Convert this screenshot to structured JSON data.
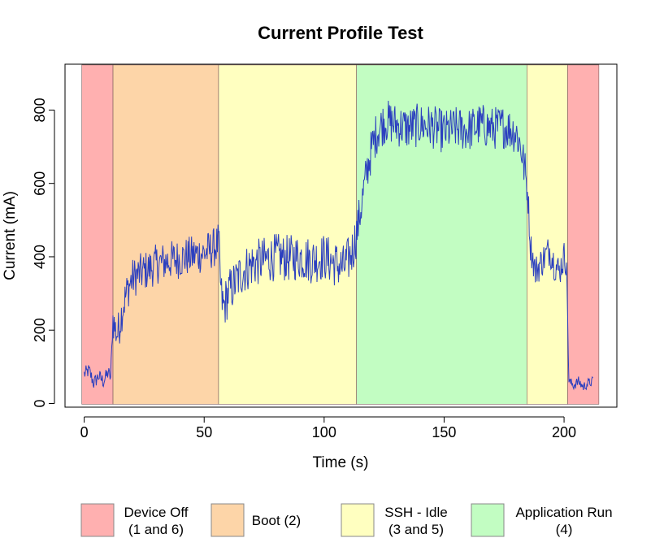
{
  "chart_data": {
    "type": "line",
    "title": "Current Profile Test",
    "xlabel": "Time (s)",
    "ylabel": "Current (mA)",
    "xlim": [
      -8,
      222
    ],
    "ylim": [
      -10,
      925
    ],
    "x_ticks": [
      0,
      50,
      100,
      150,
      200
    ],
    "y_ticks": [
      0,
      200,
      400,
      600,
      800
    ],
    "grid": false,
    "legend_position": "bottom",
    "line_color": "#2b3fbf",
    "phases": [
      {
        "label": "Device Off\n(1 and 6)",
        "start": -1,
        "end": 12,
        "color": "#ffb0b0"
      },
      {
        "label": "Boot (2)",
        "start": 12,
        "end": 56,
        "color": "#fdd5a8"
      },
      {
        "label": "SSH - Idle\n(3 and 5)",
        "start": 56,
        "end": 113.5,
        "color": "#ffffc0"
      },
      {
        "label": "Application Run\n(4)",
        "start": 113.5,
        "end": 184.5,
        "color": "#c2fdc2"
      },
      {
        "label": "SSH - Idle\n(3 and 5)",
        "start": 184.5,
        "end": 201.5,
        "color": "#ffffc0"
      },
      {
        "label": "Device Off\n(1 and 6)",
        "start": 201.5,
        "end": 214.5,
        "color": "#ffb0b0"
      }
    ],
    "legend": [
      {
        "line1": "Device Off",
        "line2": "(1 and 6)",
        "color": "#ffb0b0"
      },
      {
        "line1": "Boot (2)",
        "line2": "",
        "color": "#fdd5a8"
      },
      {
        "line1": "SSH - Idle",
        "line2": "(3 and 5)",
        "color": "#ffffc0"
      },
      {
        "line1": "Application Run",
        "line2": "(4)",
        "color": "#c2fdc2"
      }
    ],
    "series": [
      {
        "x": [
          0,
          2,
          4,
          6,
          8,
          10,
          11,
          12,
          13,
          14,
          16,
          18,
          20,
          22,
          25,
          28,
          30,
          33,
          36,
          40,
          43,
          46,
          50,
          53,
          55,
          56,
          57,
          58,
          60,
          63,
          66,
          70,
          75,
          80,
          85,
          90,
          95,
          100,
          105,
          108,
          110,
          112,
          113,
          114,
          116,
          118,
          120,
          122,
          124,
          126,
          130,
          135,
          140,
          145,
          150,
          155,
          160,
          165,
          170,
          175,
          180,
          182,
          184,
          185,
          186,
          188,
          190,
          192,
          194,
          196,
          198,
          200,
          201,
          202,
          204,
          206,
          208,
          210,
          212
        ],
        "y": [
          80,
          90,
          55,
          75,
          60,
          85,
          70,
          230,
          200,
          190,
          260,
          310,
          340,
          350,
          360,
          370,
          380,
          385,
          390,
          395,
          400,
          405,
          410,
          420,
          430,
          440,
          300,
          260,
          300,
          330,
          360,
          380,
          390,
          400,
          395,
          400,
          390,
          400,
          380,
          370,
          390,
          420,
          450,
          480,
          560,
          640,
          700,
          740,
          760,
          770,
          760,
          750,
          760,
          755,
          740,
          750,
          745,
          760,
          750,
          755,
          740,
          700,
          620,
          560,
          430,
          360,
          380,
          400,
          420,
          380,
          360,
          400,
          390,
          60,
          50,
          60,
          45,
          55,
          60
        ]
      }
    ]
  }
}
